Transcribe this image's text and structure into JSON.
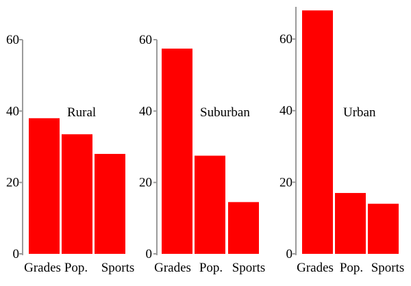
{
  "chart_data": [
    {
      "type": "bar",
      "title": "Rural",
      "categories": [
        "Grades",
        "Pop.",
        "Sports"
      ],
      "values": [
        38,
        33.5,
        28
      ],
      "ylim": [
        0,
        60
      ],
      "yticks": [
        0,
        20,
        40,
        60
      ],
      "grid": false,
      "colors": {
        "bar": "#ff0000"
      }
    },
    {
      "type": "bar",
      "title": "Suburban",
      "categories": [
        "Grades",
        "Pop.",
        "Sports"
      ],
      "values": [
        57.5,
        27.5,
        14.5
      ],
      "ylim": [
        0,
        60
      ],
      "yticks": [
        0,
        20,
        40,
        60
      ],
      "grid": false,
      "colors": {
        "bar": "#ff0000"
      }
    },
    {
      "type": "bar",
      "title": "Urban",
      "categories": [
        "Grades",
        "Pop.",
        "Sports"
      ],
      "values": [
        68,
        17,
        14
      ],
      "ylim": [
        0,
        69
      ],
      "yticks": [
        0,
        20,
        40,
        60
      ],
      "grid": false,
      "colors": {
        "bar": "#ff0000"
      }
    }
  ]
}
